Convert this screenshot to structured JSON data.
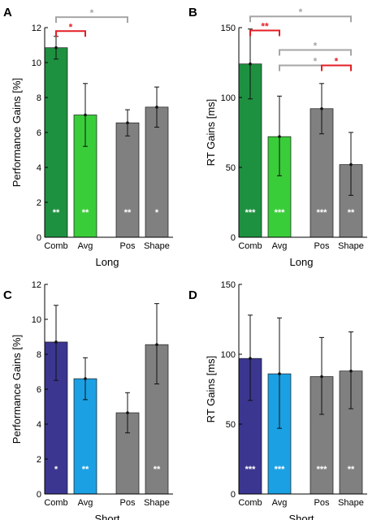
{
  "colors": {
    "comb_long": "#1e9141",
    "avg_long": "#3acd3a",
    "comb_short": "#3b3690",
    "avg_short": "#1ba0e3",
    "grey": "#808080",
    "sig_red": "#e31e24",
    "sig_grey": "#a6a6a6",
    "star_white": "#ffffff"
  },
  "chart_data": [
    {
      "panel": "A",
      "type": "bar",
      "categories": [
        "Comb",
        "Avg",
        "Pos",
        "Shape"
      ],
      "values": [
        10.85,
        7.0,
        6.55,
        7.45
      ],
      "errors": [
        [
          10.2,
          11.5
        ],
        [
          5.2,
          8.8
        ],
        [
          5.8,
          7.3
        ],
        [
          6.3,
          8.6
        ]
      ],
      "bar_stars": [
        "**",
        "**",
        "**",
        "*"
      ],
      "xlabel": "Long",
      "ylabel": "Performance Gains [%]",
      "ylim": [
        0,
        12
      ],
      "yticks": [
        "0",
        "2",
        "4",
        "6",
        "8",
        "10",
        "12"
      ],
      "brackets": [
        {
          "from": 0,
          "to": 2,
          "label": "*",
          "color": "grey",
          "y": 12.6
        },
        {
          "from": 0,
          "to": 1,
          "label": "*",
          "color": "red",
          "y": 11.8
        }
      ]
    },
    {
      "panel": "B",
      "type": "bar",
      "categories": [
        "Comb",
        "Avg",
        "Pos",
        "Shape"
      ],
      "values": [
        124,
        72,
        92,
        52
      ],
      "errors": [
        [
          99,
          149
        ],
        [
          44,
          101
        ],
        [
          74,
          110
        ],
        [
          30,
          75
        ]
      ],
      "bar_stars": [
        "***",
        "***",
        "***",
        "**"
      ],
      "xlabel": "Long",
      "ylabel": "RT Gains [ms]",
      "ylim": [
        0,
        150
      ],
      "yticks": [
        "0",
        "50",
        "100",
        "150"
      ],
      "brackets": [
        {
          "from": 0,
          "to": 3,
          "label": "*",
          "color": "grey",
          "y": 158
        },
        {
          "from": 0,
          "to": 1,
          "label": "**",
          "color": "red",
          "y": 148
        },
        {
          "from": 1,
          "to": 3,
          "label": "*",
          "color": "grey",
          "y": 134
        },
        {
          "from": 1,
          "to": 3,
          "label": "*",
          "color": "grey",
          "y": 123
        },
        {
          "from": 2,
          "to": 3,
          "label": "*",
          "color": "red",
          "y": 123
        }
      ]
    },
    {
      "panel": "C",
      "type": "bar",
      "categories": [
        "Comb",
        "Avg",
        "Pos",
        "Shape"
      ],
      "values": [
        8.7,
        6.6,
        4.65,
        8.55
      ],
      "errors": [
        [
          6.5,
          10.8
        ],
        [
          5.4,
          7.8
        ],
        [
          3.5,
          5.8
        ],
        [
          6.3,
          10.9
        ]
      ],
      "bar_stars": [
        "*",
        "**",
        "",
        "**"
      ],
      "xlabel": "Short",
      "ylabel": "Performance Gains [%]",
      "ylim": [
        0,
        12
      ],
      "yticks": [
        "0",
        "2",
        "4",
        "6",
        "8",
        "10",
        "12"
      ],
      "brackets": []
    },
    {
      "panel": "D",
      "type": "bar",
      "categories": [
        "Comb",
        "Avg",
        "Pos",
        "Shape"
      ],
      "values": [
        97,
        86,
        84,
        88
      ],
      "errors": [
        [
          67,
          128
        ],
        [
          47,
          126
        ],
        [
          57,
          112
        ],
        [
          61,
          116
        ]
      ],
      "bar_stars": [
        "***",
        "***",
        "***",
        "**"
      ],
      "xlabel": "Short",
      "ylabel": "RT Gains [ms]",
      "ylim": [
        0,
        150
      ],
      "yticks": [
        "0",
        "50",
        "100",
        "150"
      ],
      "brackets": []
    }
  ]
}
